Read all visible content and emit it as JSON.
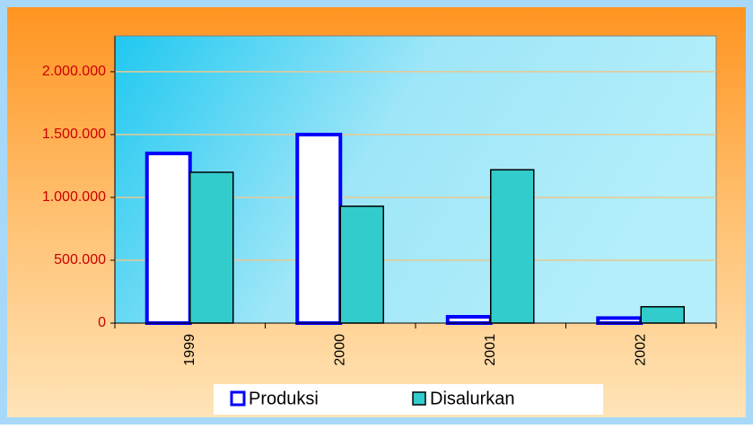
{
  "chart_data": {
    "type": "bar",
    "categories": [
      "1999",
      "2000",
      "2001",
      "2002"
    ],
    "series": [
      {
        "name": "Produksi",
        "color": "#ffffff",
        "edgecolor": "#0000ff",
        "values": [
          1350000,
          1500000,
          50000,
          40000
        ]
      },
      {
        "name": "Disalurkan",
        "color": "#33cccc",
        "edgecolor": "#000000",
        "values": [
          1200000,
          930000,
          1220000,
          130000
        ]
      }
    ],
    "ylim": [
      0,
      2285000
    ],
    "yticks": [
      0,
      {
        "value": 500000,
        "label": "500.000"
      },
      {
        "value": 1000000,
        "label": "1.000.000"
      },
      {
        "value": 1500000,
        "label": "1.500.000"
      },
      {
        "value": 2000000,
        "label": "2.000.000"
      }
    ],
    "grid": true,
    "legend": "bottom"
  }
}
